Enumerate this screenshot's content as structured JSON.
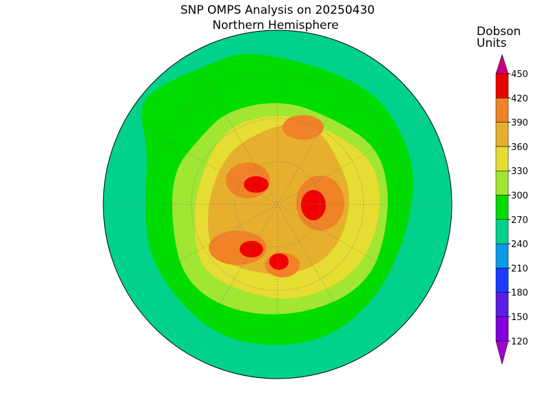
{
  "title": "SNP OMPS Analysis on 20250430",
  "subtitle": "Northern Hemisphere",
  "colorbar": {
    "label_lines": [
      "Dobson",
      "Units"
    ],
    "ticks": [
      120,
      150,
      180,
      210,
      240,
      270,
      300,
      330,
      360,
      390,
      420,
      450
    ],
    "colors": [
      "#a000c8",
      "#8200dc",
      "#5a1ee6",
      "#1e3cff",
      "#0a9ae6",
      "#00d28c",
      "#00dc00",
      "#a0e632",
      "#e6dc32",
      "#e6af2d",
      "#f08228",
      "#f00000",
      "#c8007a"
    ]
  }
}
